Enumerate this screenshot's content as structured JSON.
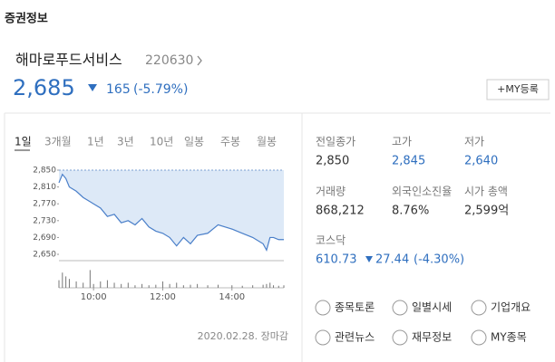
{
  "header": {
    "title": "증권정보"
  },
  "stock": {
    "name": "해마로푸드서비스",
    "code": "220630",
    "price": "2,685",
    "change": "165",
    "change_rate": "(-5.79%)",
    "my_button": "+MY등록"
  },
  "tabs": [
    "1일",
    "3개월",
    "1년",
    "3년",
    "10년",
    "일봉",
    "주봉",
    "월봉"
  ],
  "chart_data": {
    "type": "line",
    "color": "#4a7fc9",
    "reference": 2850,
    "x": [
      9.0,
      9.1,
      9.2,
      9.3,
      9.5,
      9.7,
      9.9,
      10.0,
      10.2,
      10.4,
      10.6,
      10.8,
      11.0,
      11.2,
      11.4,
      11.6,
      11.8,
      12.0,
      12.2,
      12.4,
      12.6,
      12.8,
      13.0,
      13.3,
      13.6,
      14.0,
      14.3,
      14.6,
      14.9,
      15.0,
      15.1,
      15.2,
      15.35,
      15.5
    ],
    "values": [
      2820,
      2840,
      2830,
      2810,
      2800,
      2785,
      2775,
      2770,
      2760,
      2740,
      2745,
      2725,
      2730,
      2720,
      2735,
      2715,
      2705,
      2700,
      2690,
      2670,
      2690,
      2675,
      2695,
      2700,
      2720,
      2710,
      2700,
      2690,
      2675,
      2660,
      2690,
      2690,
      2685,
      2685
    ],
    "xlim": [
      9,
      15.5
    ],
    "ylim": [
      2635,
      2850
    ],
    "yticks": [
      {
        "value": 2850,
        "label": "2,850"
      },
      {
        "value": 2810,
        "label": "2,810"
      },
      {
        "value": 2770,
        "label": "2,770"
      },
      {
        "value": 2730,
        "label": "2,730"
      },
      {
        "value": 2690,
        "label": "2,690"
      },
      {
        "value": 2650,
        "label": "2,650"
      }
    ],
    "xticks": [
      {
        "value": 10,
        "label": "10:00"
      },
      {
        "value": 12,
        "label": "12:00"
      },
      {
        "value": 14,
        "label": "14:00"
      }
    ],
    "volume": {
      "ylim": [
        0,
        100
      ],
      "values": [
        30,
        60,
        45,
        35,
        25,
        20,
        70,
        15,
        25,
        30,
        20,
        15,
        20,
        10,
        15,
        10,
        12,
        25,
        15,
        20,
        10,
        12,
        15,
        10,
        12,
        10,
        8,
        10,
        12,
        15,
        20,
        10,
        8,
        10
      ]
    }
  },
  "chart_footer": "2020.02.28. 장마감",
  "stats": [
    {
      "label": "전일종가",
      "value": "2,850",
      "color": "#333333"
    },
    {
      "label": "고가",
      "value": "2,845",
      "color": "#2f6fbf"
    },
    {
      "label": "저가",
      "value": "2,640",
      "color": "#2f6fbf"
    },
    {
      "label": "거래량",
      "value": "868,212",
      "color": "#333333"
    },
    {
      "label": "외국인소진율",
      "value": "8.76%",
      "color": "#333333"
    },
    {
      "label": "시가 총액",
      "value": "2,599억",
      "color": "#333333"
    }
  ],
  "index": {
    "name": "코스닥",
    "value": "610.73",
    "change": "27.44",
    "change_rate": "(-4.30%)"
  },
  "links": [
    "종목토론",
    "일별시세",
    "기업개요",
    "관련뉴스",
    "재무정보",
    "MY종목"
  ]
}
